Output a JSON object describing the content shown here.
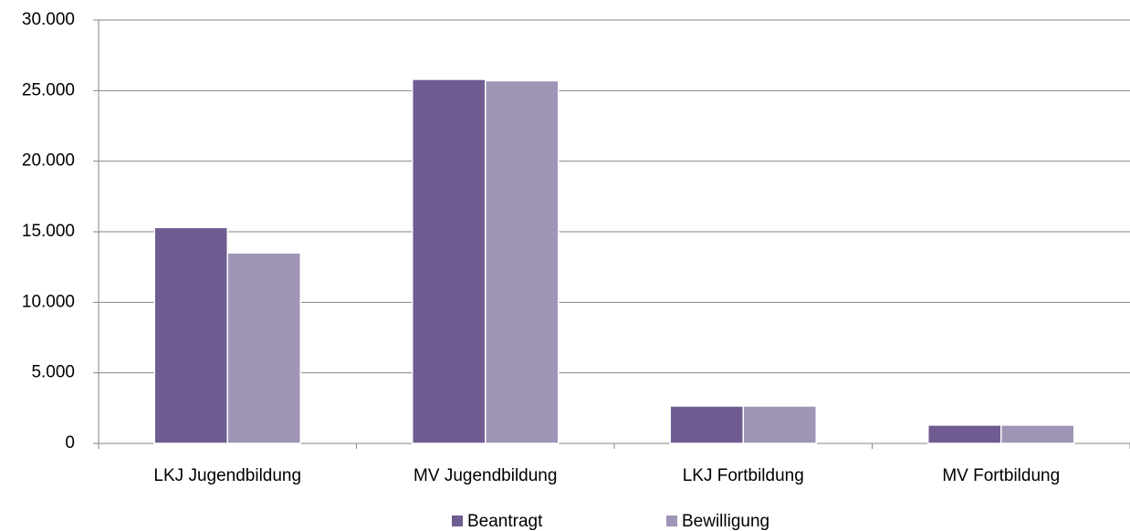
{
  "chart_data": {
    "type": "bar",
    "categories": [
      "LKJ Jugendbildung",
      "MV Jugendbildung",
      "LKJ Fortbildung",
      "MV Fortbildung"
    ],
    "series": [
      {
        "name": "Beantragt",
        "color": "#6f5c91",
        "values": [
          15300,
          25800,
          2650,
          1300
        ]
      },
      {
        "name": "Bewilligung",
        "color": "#a094b7",
        "values": [
          13500,
          25700,
          2650,
          1300
        ]
      }
    ],
    "ylim": [
      0,
      30000
    ],
    "yticks": [
      0,
      {
        "value": 5000,
        "label": "5.000"
      },
      {
        "value": 10000,
        "label": "10.000"
      },
      {
        "value": 15000,
        "label": "15.000"
      },
      {
        "value": 20000,
        "label": "20.000"
      },
      {
        "value": 25000,
        "label": "25.000"
      },
      {
        "value": 30000,
        "label": "30.000"
      }
    ],
    "grid": true,
    "legend": "bottom"
  }
}
